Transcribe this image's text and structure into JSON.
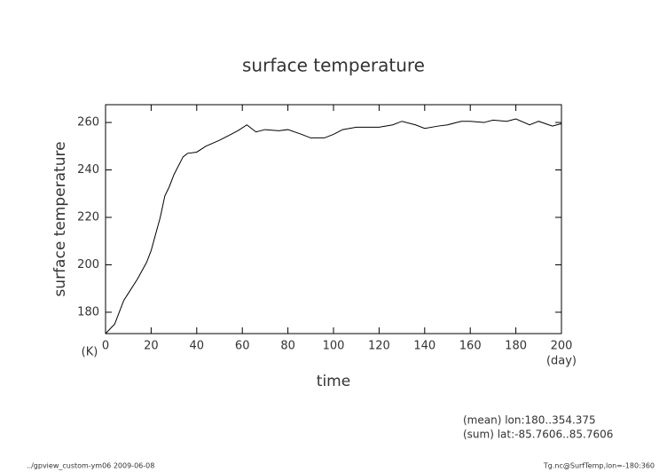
{
  "chart_data": {
    "type": "line",
    "title": "surface temperature",
    "y_label": "surface temperature",
    "y_unit": "(K)",
    "x_label": "time",
    "x_unit": "(day)",
    "annotations": [
      "(mean) lon:180..354.375",
      "(sum) lat:-85.7606..85.7606"
    ],
    "footer_left": "../gpview_custom-ym06  2009-06-08",
    "footer_right": "Tg.nc@SurfTemp,lon=-180:360",
    "x": [
      0,
      4,
      6,
      8,
      10,
      14,
      18,
      20,
      24,
      26,
      28,
      30,
      34,
      36,
      40,
      44,
      50,
      54,
      58,
      62,
      66,
      70,
      76,
      80,
      86,
      90,
      96,
      100,
      104,
      110,
      120,
      126,
      130,
      136,
      140,
      146,
      150,
      156,
      160,
      166,
      170,
      176,
      180,
      186,
      190,
      196,
      200
    ],
    "series": [
      {
        "name": "surface temperature",
        "color": "#000000",
        "values": [
          171,
          175,
          180,
          185,
          188,
          194,
          201,
          206,
          220,
          229,
          233,
          238,
          245.5,
          247,
          247.5,
          250,
          252.5,
          254.5,
          256.5,
          259,
          256,
          257,
          256.5,
          257,
          255,
          253.5,
          253.5,
          255,
          257,
          258,
          258,
          259,
          260.5,
          259,
          257.5,
          258.5,
          259,
          260.5,
          260.5,
          260,
          261,
          260.5,
          261.5,
          259,
          260.5,
          258.5,
          259.5
        ]
      }
    ],
    "xlim": [
      0,
      200
    ],
    "xticks": [
      0,
      20,
      40,
      60,
      80,
      100,
      120,
      140,
      160,
      180,
      200
    ],
    "ylim": [
      171,
      267.5
    ],
    "yticks": [
      180,
      200,
      220,
      240,
      260
    ],
    "grid": false
  }
}
